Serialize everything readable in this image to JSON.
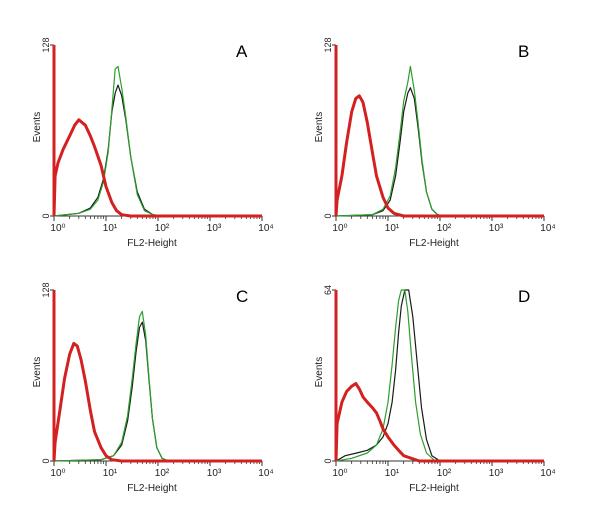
{
  "chart_data": [
    {
      "type": "line",
      "panel": "A",
      "xlabel": "FL2-Height",
      "ylabel": "Events",
      "x_scale": "log",
      "x_ticks": [
        "10⁰",
        "10¹",
        "10²",
        "10³",
        "10⁴"
      ],
      "y_ticks": [
        "0",
        "128"
      ],
      "xlim": [
        1,
        10000
      ],
      "ylim": [
        0,
        128
      ],
      "series": [
        {
          "color": "#d42020",
          "points": [
            [
              1,
              0
            ],
            [
              1.05,
              30
            ],
            [
              1.2,
              40
            ],
            [
              1.5,
              50
            ],
            [
              2,
              60
            ],
            [
              2.5,
              68
            ],
            [
              3,
              72
            ],
            [
              4,
              68
            ],
            [
              5,
              60
            ],
            [
              6,
              52
            ],
            [
              8,
              38
            ],
            [
              10,
              22
            ],
            [
              13,
              10
            ],
            [
              16,
              4
            ],
            [
              20,
              1
            ],
            [
              30,
              0
            ],
            [
              10000,
              0
            ]
          ]
        },
        {
          "color": "#1a1a1a",
          "points": [
            [
              1,
              0
            ],
            [
              3,
              2
            ],
            [
              5,
              6
            ],
            [
              7,
              14
            ],
            [
              9,
              28
            ],
            [
              11,
              50
            ],
            [
              13,
              78
            ],
            [
              15,
              92
            ],
            [
              17,
              98
            ],
            [
              20,
              90
            ],
            [
              24,
              72
            ],
            [
              30,
              44
            ],
            [
              40,
              18
            ],
            [
              55,
              5
            ],
            [
              80,
              1
            ],
            [
              120,
              0
            ],
            [
              10000,
              0
            ]
          ]
        },
        {
          "color": "#2aa02a",
          "points": [
            [
              1,
              0
            ],
            [
              3,
              2
            ],
            [
              5,
              5
            ],
            [
              7,
              12
            ],
            [
              9,
              26
            ],
            [
              11,
              48
            ],
            [
              13,
              80
            ],
            [
              15,
              110
            ],
            [
              17,
              112
            ],
            [
              20,
              96
            ],
            [
              24,
              74
            ],
            [
              30,
              44
            ],
            [
              40,
              16
            ],
            [
              55,
              4
            ],
            [
              80,
              1
            ],
            [
              120,
              0
            ],
            [
              10000,
              0
            ]
          ]
        }
      ]
    },
    {
      "type": "line",
      "panel": "B",
      "xlabel": "FL2-Height",
      "ylabel": "Events",
      "x_scale": "log",
      "x_ticks": [
        "10⁰",
        "10¹",
        "10²",
        "10³",
        "10⁴"
      ],
      "y_ticks": [
        "0",
        "128"
      ],
      "xlim": [
        1,
        10000
      ],
      "ylim": [
        0,
        128
      ],
      "series": [
        {
          "color": "#d42020",
          "points": [
            [
              1,
              0
            ],
            [
              1.05,
              12
            ],
            [
              1.3,
              30
            ],
            [
              1.6,
              55
            ],
            [
              2,
              78
            ],
            [
              2.4,
              88
            ],
            [
              2.8,
              90
            ],
            [
              3.3,
              85
            ],
            [
              4,
              70
            ],
            [
              5,
              48
            ],
            [
              6,
              30
            ],
            [
              8,
              14
            ],
            [
              10,
              6
            ],
            [
              13,
              2
            ],
            [
              20,
              0
            ],
            [
              10000,
              0
            ]
          ]
        },
        {
          "color": "#1a1a1a",
          "points": [
            [
              1,
              0
            ],
            [
              5,
              1
            ],
            [
              8,
              4
            ],
            [
              11,
              12
            ],
            [
              14,
              30
            ],
            [
              17,
              55
            ],
            [
              20,
              78
            ],
            [
              24,
              92
            ],
            [
              27,
              96
            ],
            [
              32,
              88
            ],
            [
              38,
              66
            ],
            [
              45,
              40
            ],
            [
              55,
              18
            ],
            [
              70,
              5
            ],
            [
              90,
              1
            ],
            [
              120,
              0
            ],
            [
              10000,
              0
            ]
          ]
        },
        {
          "color": "#2aa02a",
          "points": [
            [
              1,
              0
            ],
            [
              5,
              1
            ],
            [
              8,
              5
            ],
            [
              11,
              15
            ],
            [
              14,
              36
            ],
            [
              17,
              62
            ],
            [
              20,
              86
            ],
            [
              24,
              100
            ],
            [
              27,
              112
            ],
            [
              32,
              94
            ],
            [
              38,
              70
            ],
            [
              45,
              42
            ],
            [
              55,
              18
            ],
            [
              70,
              5
            ],
            [
              90,
              1
            ],
            [
              120,
              0
            ],
            [
              10000,
              0
            ]
          ]
        }
      ]
    },
    {
      "type": "line",
      "panel": "C",
      "xlabel": "FL2-Height",
      "ylabel": "Events",
      "x_scale": "log",
      "x_ticks": [
        "10⁰",
        "10¹",
        "10²",
        "10³",
        "10⁴"
      ],
      "y_ticks": [
        "0",
        "128"
      ],
      "xlim": [
        1,
        10000
      ],
      "ylim": [
        0,
        128
      ],
      "series": [
        {
          "color": "#d42020",
          "points": [
            [
              1,
              0
            ],
            [
              1.05,
              14
            ],
            [
              1.3,
              38
            ],
            [
              1.6,
              62
            ],
            [
              2,
              80
            ],
            [
              2.4,
              88
            ],
            [
              2.8,
              86
            ],
            [
              3.3,
              76
            ],
            [
              4,
              60
            ],
            [
              5,
              38
            ],
            [
              6,
              22
            ],
            [
              8,
              10
            ],
            [
              10,
              4
            ],
            [
              13,
              1
            ],
            [
              20,
              0
            ],
            [
              10000,
              0
            ]
          ]
        },
        {
          "color": "#1a1a1a",
          "points": [
            [
              1,
              0
            ],
            [
              8,
              1
            ],
            [
              14,
              4
            ],
            [
              20,
              12
            ],
            [
              26,
              30
            ],
            [
              32,
              56
            ],
            [
              38,
              82
            ],
            [
              44,
              100
            ],
            [
              50,
              104
            ],
            [
              58,
              90
            ],
            [
              66,
              64
            ],
            [
              78,
              32
            ],
            [
              95,
              10
            ],
            [
              120,
              2
            ],
            [
              160,
              0
            ],
            [
              10000,
              0
            ]
          ]
        },
        {
          "color": "#2aa02a",
          "points": [
            [
              1,
              0
            ],
            [
              8,
              1
            ],
            [
              14,
              4
            ],
            [
              20,
              14
            ],
            [
              26,
              34
            ],
            [
              32,
              62
            ],
            [
              38,
              88
            ],
            [
              44,
              108
            ],
            [
              50,
              112
            ],
            [
              58,
              94
            ],
            [
              66,
              66
            ],
            [
              78,
              32
            ],
            [
              95,
              10
            ],
            [
              120,
              2
            ],
            [
              160,
              0
            ],
            [
              10000,
              0
            ]
          ]
        }
      ]
    },
    {
      "type": "line",
      "panel": "D",
      "xlabel": "FL2-Height",
      "ylabel": "Events",
      "x_scale": "log",
      "x_ticks": [
        "10⁰",
        "10¹",
        "10²",
        "10³",
        "10⁴"
      ],
      "y_ticks": [
        "0",
        "64"
      ],
      "xlim": [
        1,
        10000
      ],
      "ylim": [
        0,
        64
      ],
      "series": [
        {
          "color": "#d42020",
          "points": [
            [
              1,
              0
            ],
            [
              1.05,
              14
            ],
            [
              1.3,
              22
            ],
            [
              1.6,
              26
            ],
            [
              2,
              28
            ],
            [
              2.4,
              29
            ],
            [
              2.8,
              27
            ],
            [
              3.3,
              24
            ],
            [
              4,
              22
            ],
            [
              5,
              20
            ],
            [
              6,
              18
            ],
            [
              7,
              15
            ],
            [
              8,
              12
            ],
            [
              10,
              9
            ],
            [
              13,
              6
            ],
            [
              16,
              4
            ],
            [
              20,
              2
            ],
            [
              28,
              1
            ],
            [
              40,
              0
            ],
            [
              10000,
              0
            ]
          ]
        },
        {
          "color": "#1a1a1a",
          "points": [
            [
              1,
              0
            ],
            [
              1.5,
              2
            ],
            [
              2.5,
              3
            ],
            [
              4,
              4
            ],
            [
              6,
              6
            ],
            [
              8,
              9
            ],
            [
              10,
              14
            ],
            [
              12,
              22
            ],
            [
              14,
              34
            ],
            [
              16,
              48
            ],
            [
              18,
              58
            ],
            [
              21,
              64
            ],
            [
              25,
              64
            ],
            [
              30,
              54
            ],
            [
              36,
              38
            ],
            [
              44,
              20
            ],
            [
              55,
              8
            ],
            [
              70,
              2
            ],
            [
              100,
              0
            ],
            [
              10000,
              0
            ]
          ]
        },
        {
          "color": "#2aa02a",
          "points": [
            [
              1,
              0
            ],
            [
              2,
              1
            ],
            [
              4,
              3
            ],
            [
              6,
              6
            ],
            [
              8,
              12
            ],
            [
              10,
              22
            ],
            [
              12,
              36
            ],
            [
              14,
              50
            ],
            [
              16,
              60
            ],
            [
              18,
              64
            ],
            [
              21,
              64
            ],
            [
              24,
              56
            ],
            [
              28,
              40
            ],
            [
              34,
              22
            ],
            [
              42,
              10
            ],
            [
              55,
              3
            ],
            [
              80,
              0
            ],
            [
              10000,
              0
            ]
          ]
        }
      ]
    }
  ]
}
